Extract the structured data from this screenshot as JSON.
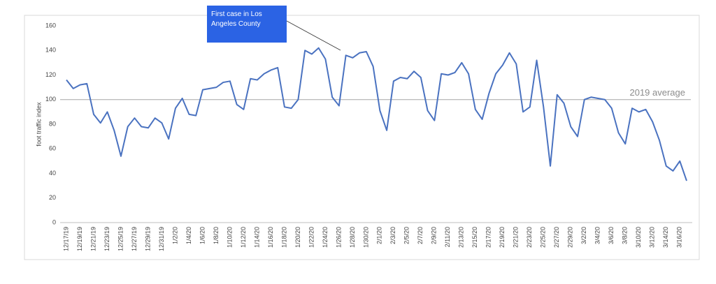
{
  "chart_data": {
    "type": "line",
    "y_label": "foot traffic index",
    "annotation": "First case in Los Angeles County",
    "reference_line": {
      "value": 100,
      "label": "2019 average"
    },
    "categories": [
      "12/17/19",
      null,
      "12/19/19",
      null,
      "12/21/19",
      null,
      "12/23/19",
      null,
      "12/25/19",
      null,
      "12/27/19",
      null,
      "12/29/19",
      null,
      "12/31/19",
      null,
      "1/2/20",
      null,
      "1/4/20",
      null,
      "1/6/20",
      null,
      "1/8/20",
      null,
      "1/10/20",
      null,
      "1/12/20",
      null,
      "1/14/20",
      null,
      "1/16/20",
      null,
      "1/18/20",
      null,
      "1/20/20",
      null,
      "1/22/20",
      null,
      "1/24/20",
      null,
      "1/26/20",
      null,
      "1/28/20",
      null,
      "1/30/20",
      null,
      "2/1/20",
      null,
      "2/3/20",
      null,
      "2/5/20",
      null,
      "2/7/20",
      null,
      "2/9/20",
      null,
      "2/11/20",
      null,
      "2/13/20",
      null,
      "2/15/20",
      null,
      "2/17/20",
      null,
      "2/19/20",
      null,
      "2/21/20",
      null,
      "2/23/20",
      null,
      "2/25/20",
      null,
      "2/27/20",
      null,
      "2/29/20",
      null,
      "3/2/20",
      null,
      "3/4/20",
      null,
      "3/6/20",
      null,
      "3/8/20",
      null,
      "3/10/20",
      null,
      "3/12/20",
      null,
      "3/14/20",
      null,
      "3/16/20",
      null
    ],
    "series": [
      {
        "color": "#4a72c0",
        "values": [
          116,
          109,
          112,
          113,
          88,
          81,
          90,
          75,
          54,
          78,
          85,
          78,
          77,
          85,
          81,
          68,
          93,
          101,
          88,
          87,
          108,
          109,
          110,
          114,
          115,
          96,
          92,
          117,
          116,
          121,
          124,
          126,
          94,
          93,
          100,
          140,
          137,
          142,
          133,
          102,
          95,
          136,
          134,
          138,
          139,
          127,
          91,
          75,
          115,
          118,
          117,
          123,
          118,
          91,
          83,
          121,
          120,
          122,
          130,
          121,
          92,
          84,
          105,
          121,
          128,
          138,
          129,
          90,
          94,
          132,
          94,
          46,
          104,
          97,
          78,
          70,
          100,
          102,
          101,
          100,
          93,
          73,
          64,
          93,
          90,
          92,
          82,
          67,
          46,
          42,
          50,
          34
        ]
      }
    ],
    "ylim": [
      0,
      160
    ],
    "yticks": [
      0,
      20,
      40,
      60,
      80,
      100,
      120,
      140,
      160
    ]
  }
}
